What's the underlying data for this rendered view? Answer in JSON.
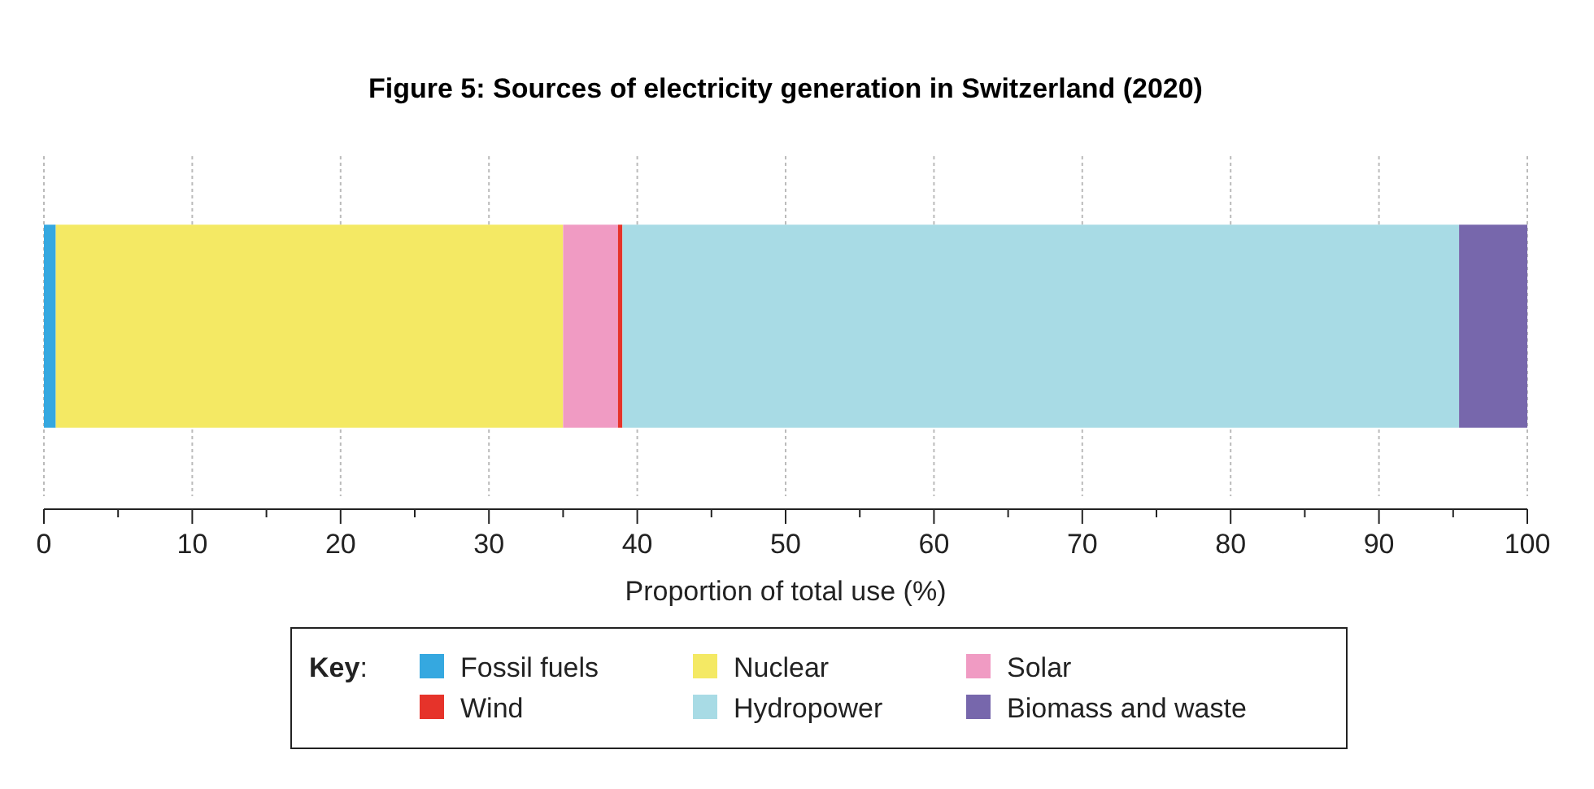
{
  "chart_data": {
    "type": "bar",
    "orientation": "horizontal",
    "stacked": true,
    "title": "Figure 5: Sources of electricity generation in Switzerland (2020)",
    "xlabel": "Proportion of total use (%)",
    "legend_title": "Key:",
    "legend": "bottom",
    "grid": "x",
    "categories": [
      null
    ],
    "series": [
      {
        "name": "Fossil fuels",
        "color": "#35a8e0",
        "values": [
          0.8
        ]
      },
      {
        "name": "Nuclear",
        "color": "#f4e964",
        "values": [
          34.2
        ]
      },
      {
        "name": "Solar",
        "color": "#f09bc3",
        "values": [
          3.7
        ]
      },
      {
        "name": "Wind",
        "color": "#e6332a",
        "values": [
          0.3
        ]
      },
      {
        "name": "Hydropower",
        "color": "#a8dbe5",
        "values": [
          56.4
        ]
      },
      {
        "name": "Biomass and waste",
        "color": "#7767ac",
        "values": [
          4.6
        ]
      }
    ],
    "xlim": [
      0,
      100
    ],
    "xticks": [
      0,
      {
        "value": 5,
        "label": null
      },
      10,
      {
        "value": 15,
        "label": null
      },
      20,
      {
        "value": 25,
        "label": null
      },
      30,
      {
        "value": 35,
        "label": null
      },
      40,
      {
        "value": 45,
        "label": null
      },
      50,
      {
        "value": 55,
        "label": null
      },
      60,
      {
        "value": 65,
        "label": null
      },
      70,
      {
        "value": 75,
        "label": null
      },
      80,
      {
        "value": 85,
        "label": null
      },
      90,
      {
        "value": 95,
        "label": null
      },
      100
    ]
  }
}
